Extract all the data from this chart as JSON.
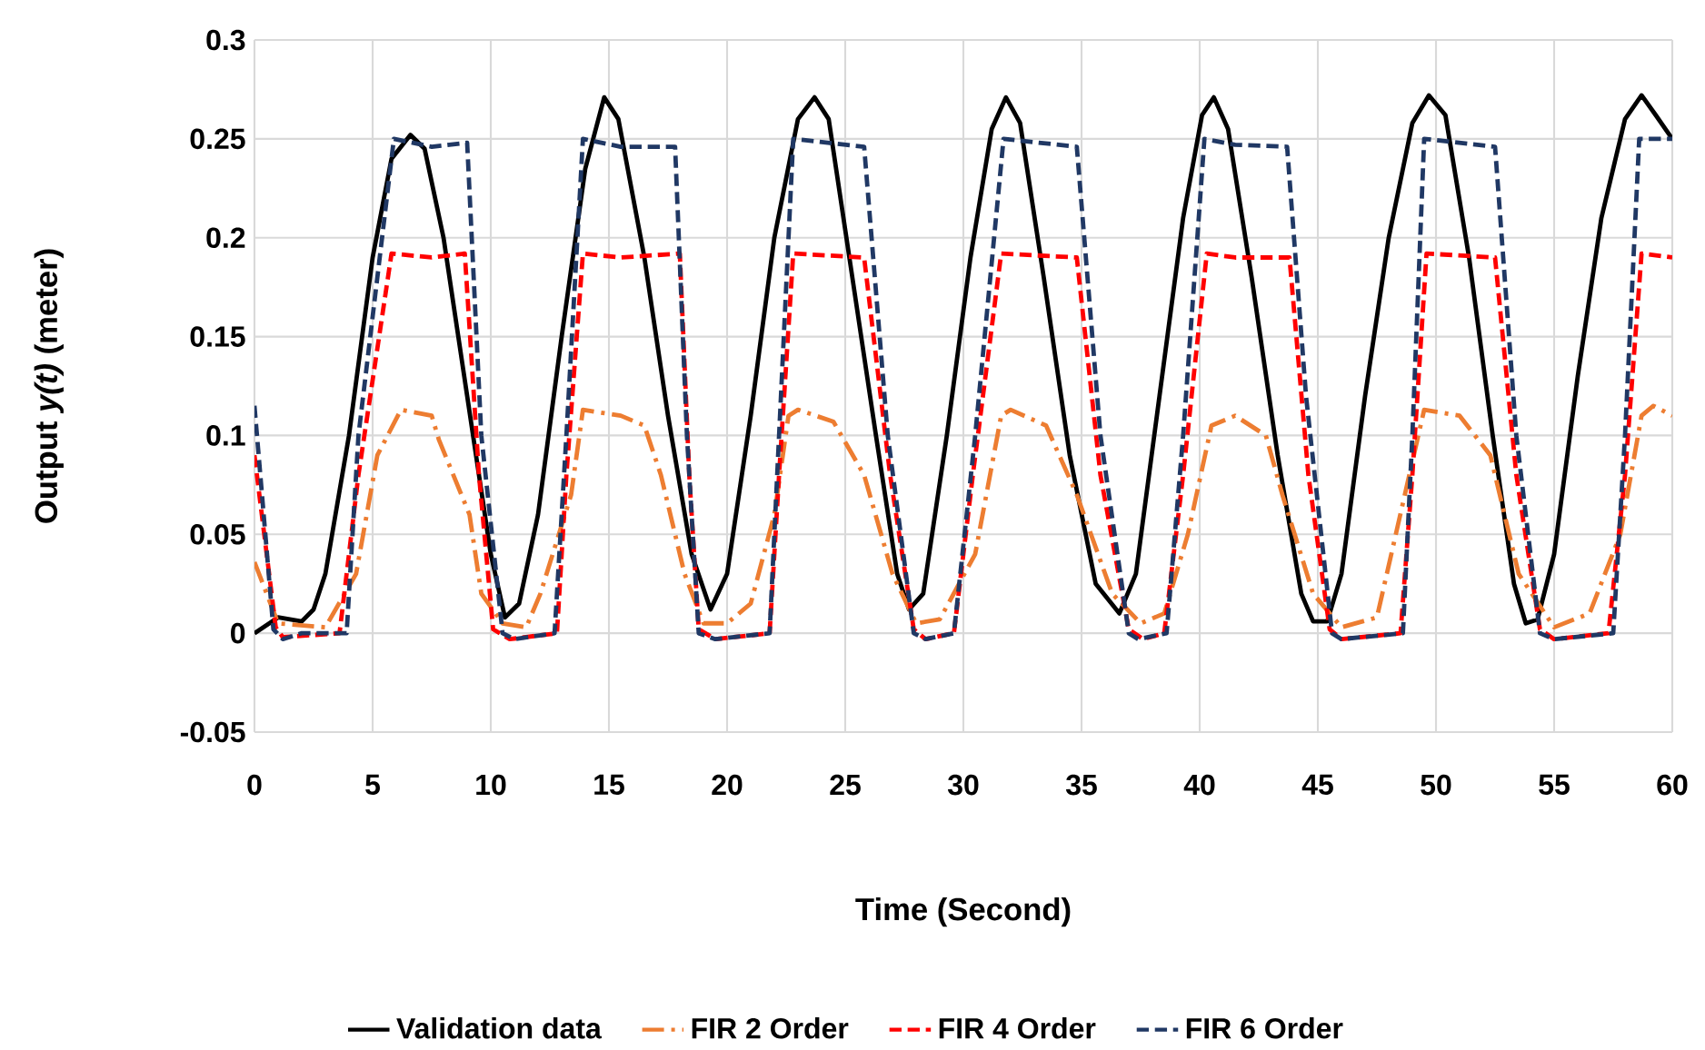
{
  "chart_data": {
    "type": "line",
    "xlabel": "Time (Second)",
    "ylabel": "Output *y(t)* (meter)",
    "xlim": [
      0,
      60
    ],
    "xticks": [
      0,
      5,
      10,
      15,
      20,
      25,
      30,
      35,
      40,
      45,
      50,
      55,
      60
    ],
    "ylim": [
      -0.05,
      0.3
    ],
    "yticks": [
      -0.05,
      0,
      0.05,
      0.1,
      0.15,
      0.2,
      0.25,
      0.3
    ],
    "grid": true,
    "legend": "bottom",
    "marker": "none",
    "series": [
      {
        "name": "Validation data",
        "color": "#000000",
        "line_style": "solid",
        "x": [
          0,
          1,
          2,
          2.5,
          3,
          4,
          5,
          5.8,
          6.6,
          7.2,
          8,
          9,
          10,
          10.6,
          11.2,
          12,
          13,
          14,
          14.8,
          15.4,
          16.5,
          17.5,
          18.5,
          19.3,
          20,
          21,
          22,
          23,
          23.7,
          24.3,
          25.3,
          26.3,
          27.2,
          27.7,
          28.3,
          29.3,
          30.3,
          31.2,
          31.8,
          32.4,
          33.4,
          34.5,
          35.6,
          36.6,
          37.3,
          38.3,
          39.3,
          40.1,
          40.6,
          41.2,
          42.2,
          43.3,
          44.3,
          44.8,
          45.4,
          46,
          47,
          48,
          49,
          49.7,
          50.4,
          51.4,
          52.4,
          53.3,
          53.8,
          54.3,
          55,
          56,
          57,
          58,
          58.7,
          59.3,
          60
        ],
        "values": [
          0,
          0.008,
          0.006,
          0.012,
          0.03,
          0.1,
          0.19,
          0.24,
          0.252,
          0.245,
          0.2,
          0.12,
          0.04,
          0.008,
          0.015,
          0.06,
          0.15,
          0.235,
          0.271,
          0.26,
          0.19,
          0.11,
          0.04,
          0.012,
          0.03,
          0.11,
          0.2,
          0.26,
          0.271,
          0.26,
          0.18,
          0.1,
          0.03,
          0.012,
          0.02,
          0.1,
          0.19,
          0.255,
          0.271,
          0.258,
          0.18,
          0.09,
          0.025,
          0.01,
          0.03,
          0.12,
          0.21,
          0.262,
          0.271,
          0.255,
          0.18,
          0.09,
          0.02,
          0.006,
          0.006,
          0.03,
          0.12,
          0.2,
          0.258,
          0.272,
          0.262,
          0.19,
          0.1,
          0.025,
          0.005,
          0.007,
          0.04,
          0.13,
          0.21,
          0.26,
          0.272,
          0.262,
          0.25
        ]
      },
      {
        "name": "FIR 2 Order",
        "color": "#ed7d31",
        "line_style": "dashdot",
        "x": [
          0,
          1,
          3,
          4.3,
          5.2,
          6.2,
          7.5,
          7.8,
          9.1,
          9.6,
          10.5,
          11.5,
          12.1,
          13.4,
          13.9,
          15.5,
          16.5,
          17.2,
          18.2,
          19,
          20,
          21,
          22,
          22.6,
          23,
          24.5,
          25.8,
          27,
          28,
          29,
          30.5,
          31.6,
          32,
          33.5,
          34.8,
          36.3,
          37.5,
          38.5,
          39.5,
          40.5,
          41.5,
          42.8,
          43.5,
          44.8,
          46,
          47.5,
          48.3,
          49.5,
          51,
          52.3,
          53.5,
          55,
          56.5,
          57.8,
          58.7,
          59.2,
          60
        ],
        "values": [
          0.036,
          0.005,
          0.003,
          0.03,
          0.09,
          0.113,
          0.11,
          0.098,
          0.06,
          0.02,
          0.005,
          0.003,
          0.02,
          0.07,
          0.113,
          0.11,
          0.105,
          0.08,
          0.03,
          0.005,
          0.005,
          0.015,
          0.06,
          0.11,
          0.113,
          0.107,
          0.08,
          0.03,
          0.005,
          0.007,
          0.04,
          0.11,
          0.113,
          0.105,
          0.07,
          0.02,
          0.005,
          0.01,
          0.05,
          0.105,
          0.11,
          0.1,
          0.07,
          0.02,
          0.003,
          0.008,
          0.05,
          0.113,
          0.11,
          0.09,
          0.03,
          0.003,
          0.01,
          0.05,
          0.11,
          0.115,
          0.11
        ]
      },
      {
        "name": "FIR 4 Order",
        "color": "#ff0000",
        "line_style": "dashed",
        "x": [
          0,
          0.9,
          1.2,
          3.6,
          4.4,
          5.8,
          7.5,
          8.9,
          9.5,
          10.1,
          10.8,
          12.8,
          13.2,
          13.9,
          15.5,
          18,
          18.4,
          18.8,
          19.5,
          21.8,
          22.2,
          22.8,
          25.8,
          26.9,
          27.9,
          28.4,
          29.6,
          30.4,
          31.6,
          34.8,
          35.8,
          37,
          37.6,
          38.5,
          39.3,
          40.3,
          41.5,
          43.8,
          44.6,
          45.5,
          46,
          48.5,
          49,
          49.6,
          52.5,
          53.4,
          54.4,
          55,
          57.3,
          58,
          58.7,
          60
        ],
        "values": [
          0.09,
          0.003,
          -0.002,
          0,
          0.08,
          0.192,
          0.19,
          0.192,
          0.08,
          0.002,
          -0.003,
          0,
          0.08,
          0.192,
          0.19,
          0.192,
          0.08,
          0.002,
          -0.003,
          0,
          0.08,
          0.192,
          0.19,
          0.08,
          0.002,
          -0.003,
          0,
          0.08,
          0.192,
          0.19,
          0.08,
          0.002,
          -0.003,
          0,
          0.08,
          0.192,
          0.19,
          0.19,
          0.08,
          0.002,
          -0.003,
          0,
          0.08,
          0.192,
          0.19,
          0.08,
          0.002,
          -0.003,
          0,
          0.08,
          0.192,
          0.19
        ]
      },
      {
        "name": "FIR 6 Order",
        "color": "#203864",
        "line_style": "dashed",
        "x": [
          0,
          0.8,
          1.2,
          2,
          3.9,
          4.4,
          5.9,
          7.5,
          9,
          9.6,
          10.5,
          11,
          12.7,
          13.2,
          13.9,
          15.5,
          17.8,
          18.3,
          18.8,
          19.5,
          21.8,
          22.2,
          22.8,
          25.8,
          26.8,
          27.9,
          28.4,
          29.6,
          30.5,
          31.7,
          34.8,
          35.8,
          37,
          37.4,
          38.6,
          39.3,
          40.2,
          41.5,
          43.7,
          44.5,
          45.6,
          46,
          48.6,
          49,
          49.5,
          52.5,
          53.4,
          54.4,
          55,
          57.5,
          58,
          58.6,
          60
        ],
        "values": [
          0.115,
          0.002,
          -0.003,
          0,
          0,
          0.1,
          0.25,
          0.246,
          0.248,
          0.1,
          0,
          -0.003,
          0,
          0.1,
          0.25,
          0.246,
          0.246,
          0.1,
          0,
          -0.003,
          0,
          0.1,
          0.25,
          0.246,
          0.1,
          0,
          -0.003,
          0,
          0.1,
          0.25,
          0.246,
          0.1,
          0,
          -0.003,
          0,
          0.1,
          0.25,
          0.247,
          0.246,
          0.12,
          0,
          -0.003,
          0,
          0.1,
          0.25,
          0.246,
          0.1,
          0,
          -0.003,
          0,
          0.1,
          0.25,
          0.25
        ]
      }
    ]
  }
}
